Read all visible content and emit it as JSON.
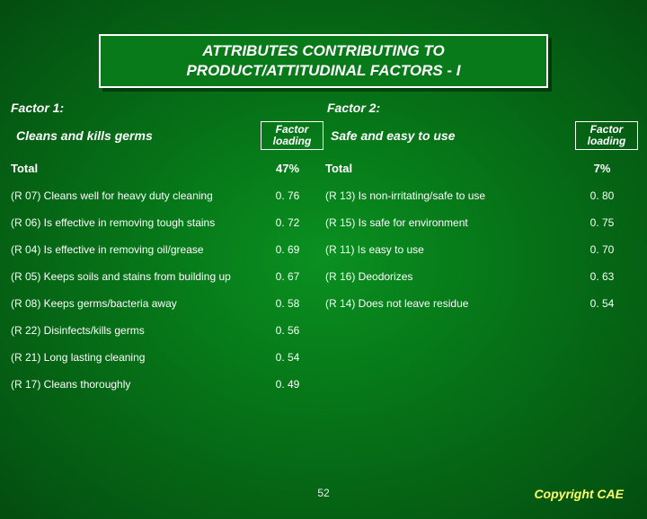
{
  "title_line1": "ATTRIBUTES CONTRIBUTING TO",
  "title_line2": "PRODUCT/ATTITUDINAL FACTORS - I",
  "factor1_label": "Factor 1:",
  "factor2_label": "Factor 2:",
  "left": {
    "header_desc": "Cleans and kills germs",
    "header_load": "Factor loading",
    "total": {
      "label": "Total",
      "value": "47%"
    },
    "rows": [
      {
        "label": "(R 07) Cleans well for heavy duty cleaning",
        "value": "0. 76"
      },
      {
        "label": "(R 06) Is effective in removing tough stains",
        "value": "0. 72"
      },
      {
        "label": "(R 04) Is effective in removing oil/grease",
        "value": "0. 69"
      },
      {
        "label": "(R 05) Keeps soils and stains from building up",
        "value": "0. 67"
      },
      {
        "label": "(R 08) Keeps germs/bacteria away",
        "value": "0. 58"
      },
      {
        "label": "(R 22) Disinfects/kills germs",
        "value": "0. 56"
      },
      {
        "label": "(R 21) Long lasting cleaning",
        "value": "0. 54"
      },
      {
        "label": "(R 17) Cleans thoroughly",
        "value": "0. 49"
      }
    ]
  },
  "right": {
    "header_desc": "Safe and easy to use",
    "header_load": "Factor loading",
    "total": {
      "label": "Total",
      "value": "7%"
    },
    "rows": [
      {
        "label": "(R 13) Is non-irritating/safe to use",
        "value": "0. 80"
      },
      {
        "label": "(R 15) Is safe for environment",
        "value": "0. 75"
      },
      {
        "label": "(R 11) Is easy to use",
        "value": "0. 70"
      },
      {
        "label": "(R 16) Deodorizes",
        "value": "0. 63"
      },
      {
        "label": "(R 14) Does not leave residue",
        "value": "0. 54"
      }
    ]
  },
  "slide_number": "52",
  "copyright": "Copyright CAE"
}
